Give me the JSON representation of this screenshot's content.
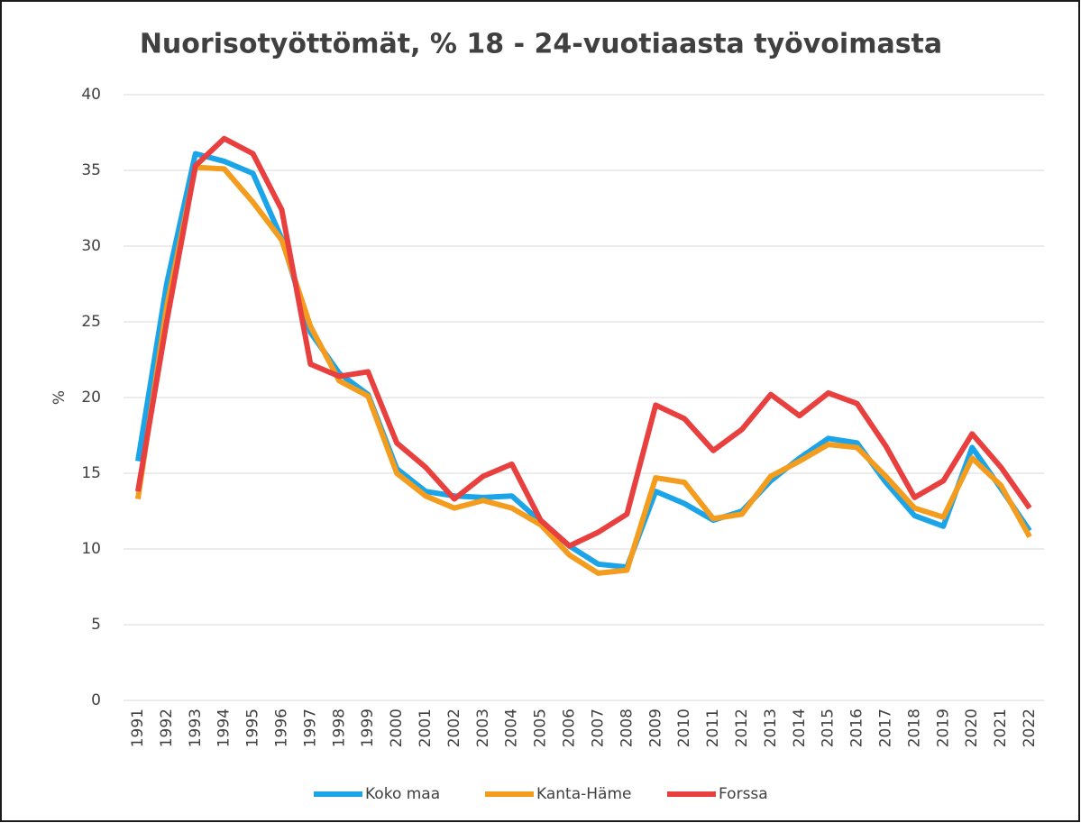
{
  "chart_data": {
    "type": "line",
    "title": "Nuorisotyöttömät, % 18 - 24-vuotiaasta työvoimasta",
    "y_label": "%",
    "categories": [
      "1991",
      "1992",
      "1993",
      "1994",
      "1995",
      "1996",
      "1997",
      "1998",
      "1999",
      "2000",
      "2001",
      "2002",
      "2003",
      "2004",
      "2005",
      "2006",
      "2007",
      "2008",
      "2009",
      "2010",
      "2011",
      "2012",
      "2013",
      "2014",
      "2015",
      "2016",
      "2017",
      "2018",
      "2019",
      "2020",
      "2021",
      "2022"
    ],
    "series": [
      {
        "name": "Koko maa",
        "color": "#1ca4e8",
        "values": [
          15.8,
          27.5,
          36.1,
          35.6,
          34.8,
          30.5,
          24.3,
          21.6,
          20.2,
          15.3,
          13.8,
          13.5,
          13.4,
          13.5,
          11.8,
          10.2,
          9.0,
          8.8,
          13.8,
          13.0,
          11.9,
          12.5,
          14.5,
          16.0,
          17.3,
          17.0,
          14.4,
          12.2,
          11.5,
          16.7,
          14.0,
          11.2
        ]
      },
      {
        "name": "Kanta-Häme",
        "color": "#f39c1e",
        "values": [
          13.3,
          26.0,
          35.2,
          35.1,
          32.9,
          30.4,
          24.7,
          21.1,
          20.1,
          15.0,
          13.5,
          12.7,
          13.2,
          12.7,
          11.6,
          9.6,
          8.4,
          8.6,
          14.7,
          14.4,
          12.0,
          12.3,
          14.8,
          15.8,
          16.9,
          16.7,
          14.8,
          12.7,
          12.1,
          16.0,
          14.2,
          10.8
        ]
      },
      {
        "name": "Forssa",
        "color": "#e8403f",
        "values": [
          13.8,
          25.0,
          35.3,
          37.1,
          36.1,
          32.4,
          22.2,
          21.4,
          21.7,
          17.0,
          15.4,
          13.3,
          14.8,
          15.6,
          11.9,
          10.2,
          11.1,
          12.3,
          19.5,
          18.6,
          16.5,
          17.9,
          20.2,
          18.8,
          20.3,
          19.6,
          16.8,
          13.4,
          14.5,
          17.6,
          15.4,
          12.7
        ]
      }
    ],
    "ylim": [
      0,
      40
    ],
    "yticks": [
      0,
      5,
      10,
      15,
      20,
      25,
      30,
      35,
      40
    ],
    "grid": true,
    "legend": "bottom"
  }
}
